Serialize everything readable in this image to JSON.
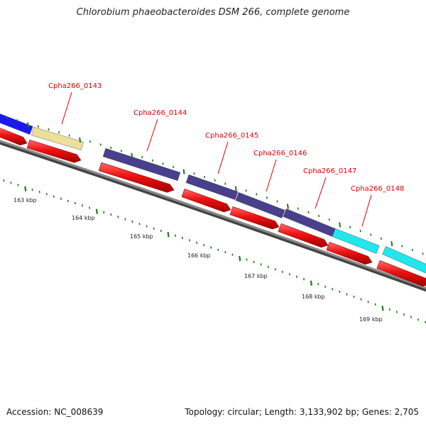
{
  "title": "Chlorobium phaeobacteroides DSM 266, complete genome",
  "footer": {
    "accession": "Accession: NC_008639",
    "summary": "Topology: circular; Length: 3,133,902 bp; Genes: 2,705"
  },
  "colors": {
    "backbone": "#7a7a7a",
    "cds": "#ee1111",
    "tick": "#1a7a1a",
    "label": "#e00000",
    "blue": "#1a1aee",
    "tan": "#ecdf9a",
    "purple": "#4a3f8c",
    "cyan": "#22e6ee"
  },
  "genes": [
    {
      "name": "Cpha266_0143"
    },
    {
      "name": "Cpha266_0144"
    },
    {
      "name": "Cpha266_0145"
    },
    {
      "name": "Cpha266_0146"
    },
    {
      "name": "Cpha266_0147"
    },
    {
      "name": "Cpha266_0148"
    }
  ],
  "kbp_labels": [
    "163 kbp",
    "164 kbp",
    "165 kbp",
    "166 kbp",
    "167 kbp",
    "168 kbp",
    "169 kbp"
  ]
}
